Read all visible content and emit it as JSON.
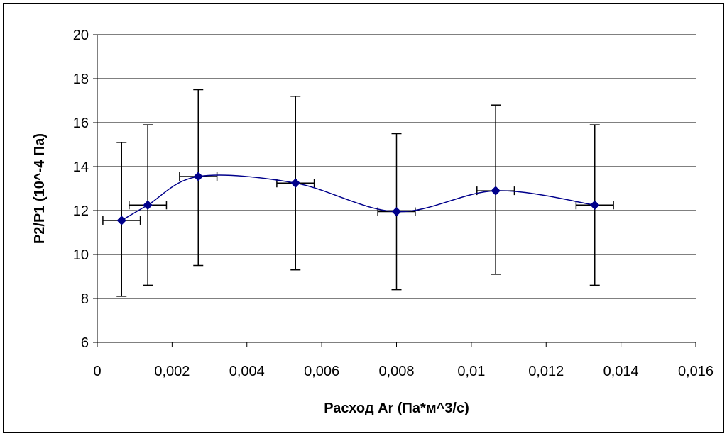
{
  "chart_data": {
    "type": "scatter",
    "title": "",
    "xlabel": "Расход Ar (Па*м^3/с)",
    "ylabel": "P2/P1 (10^-4 Па)",
    "xlim": [
      0,
      0.016
    ],
    "ylim": [
      6,
      20
    ],
    "x_ticks": [
      0,
      0.002,
      0.004,
      0.006,
      0.008,
      0.01,
      0.012,
      0.014,
      0.016
    ],
    "x_tick_labels": [
      "0",
      "0,002",
      "0,004",
      "0,006",
      "0,008",
      "0,01",
      "0,012",
      "0,014",
      "0,016"
    ],
    "y_ticks": [
      6,
      8,
      10,
      12,
      14,
      16,
      18,
      20
    ],
    "y_tick_labels": [
      "6",
      "8",
      "10",
      "12",
      "14",
      "16",
      "18",
      "20"
    ],
    "grid": "horizontal",
    "smoothed_line": true,
    "series": [
      {
        "color": "#00008b",
        "marker": "diamond",
        "x": [
          0.00065,
          0.00135,
          0.0027,
          0.0053,
          0.008,
          0.01065,
          0.0133
        ],
        "y": [
          11.55,
          12.25,
          13.55,
          13.25,
          11.95,
          12.9,
          12.25
        ],
        "y_err_low": [
          8.1,
          8.6,
          9.5,
          9.3,
          8.4,
          9.1,
          8.6
        ],
        "y_err_high": [
          15.1,
          15.9,
          17.5,
          17.2,
          15.5,
          16.8,
          15.9
        ],
        "x_err": [
          0.0005,
          0.0005,
          0.0005,
          0.0005,
          0.0005,
          0.0005,
          0.0005
        ]
      }
    ]
  }
}
